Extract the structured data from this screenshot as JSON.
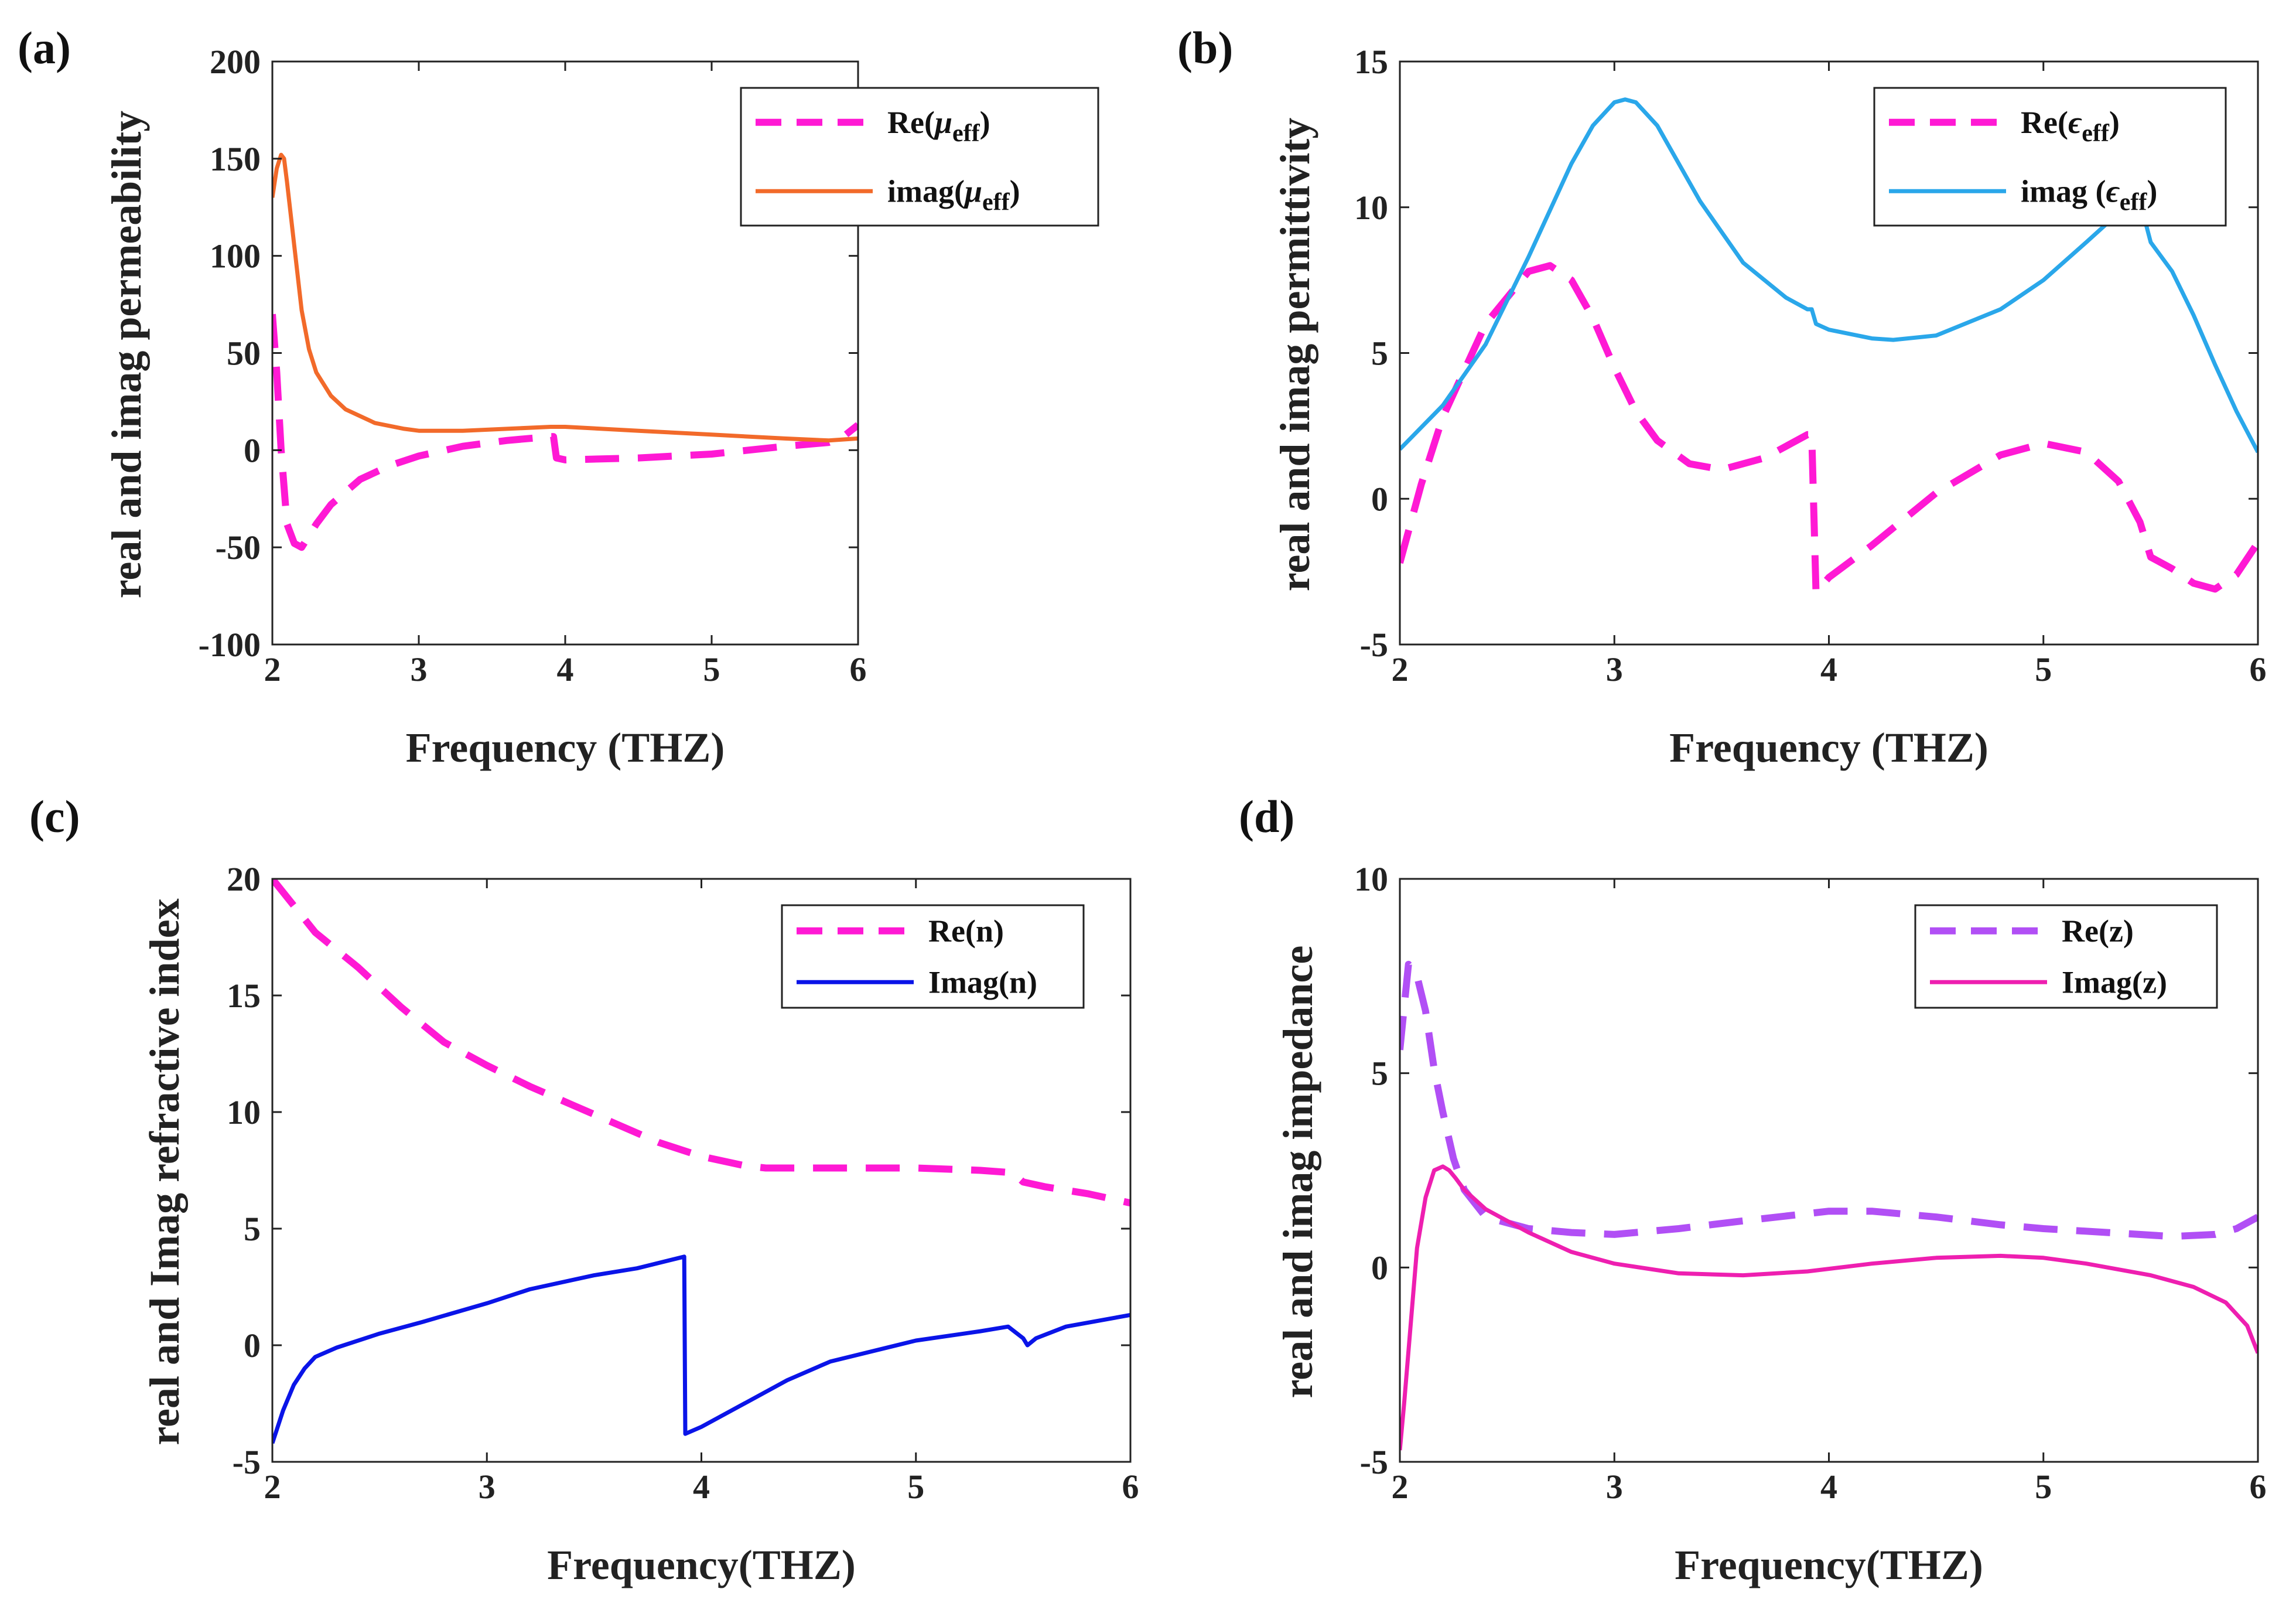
{
  "chart_data": [
    {
      "panel": "(a)",
      "type": "line",
      "xlabel": "Frequency (THZ)",
      "ylabel": "real and imag permeability",
      "xlim": [
        2,
        6
      ],
      "ylim": [
        -100,
        200
      ],
      "xticks": [
        2,
        3,
        4,
        5,
        6
      ],
      "yticks": [
        -100,
        -50,
        0,
        50,
        100,
        150,
        200
      ],
      "legend_position": "top-right",
      "series": [
        {
          "name": "Re(μeff)",
          "label_main": "Re(",
          "label_sym": "μ",
          "label_sub": "eff",
          "label_close": ")",
          "color": "#ff19d4",
          "dash": true,
          "x": [
            2.0,
            2.03,
            2.06,
            2.1,
            2.15,
            2.2,
            2.3,
            2.4,
            2.6,
            2.8,
            3.0,
            3.3,
            3.6,
            3.9,
            3.92,
            3.94,
            4.0,
            4.5,
            5.0,
            5.5,
            5.8,
            5.9,
            6.0
          ],
          "y": [
            70,
            40,
            0,
            -38,
            -48,
            -50,
            -38,
            -28,
            -15,
            -8,
            -3,
            2,
            5,
            7,
            7,
            -4,
            -5,
            -4,
            -2,
            2,
            4,
            7,
            13
          ]
        },
        {
          "name": "imag(μeff)",
          "label_main": "imag(",
          "label_sym": "μ",
          "label_sub": "eff",
          "label_close": ")",
          "color": "#f26a2a",
          "dash": false,
          "x": [
            2.0,
            2.03,
            2.06,
            2.08,
            2.1,
            2.15,
            2.2,
            2.25,
            2.3,
            2.4,
            2.5,
            2.7,
            2.9,
            3.0,
            3.3,
            3.6,
            3.9,
            3.92,
            3.94,
            4.0,
            4.5,
            5.0,
            5.5,
            5.8,
            6.0
          ],
          "y": [
            130,
            145,
            152,
            150,
            138,
            105,
            72,
            52,
            40,
            28,
            21,
            14,
            11,
            10,
            10,
            11,
            12,
            12,
            12,
            12,
            10,
            8,
            6,
            5,
            6
          ]
        }
      ]
    },
    {
      "panel": "(b)",
      "type": "line",
      "xlabel": "Frequency (THZ)",
      "ylabel": "real and imag permittivity",
      "xlim": [
        2,
        6
      ],
      "ylim": [
        -5,
        15
      ],
      "xticks": [
        2,
        3,
        4,
        5,
        6
      ],
      "yticks": [
        -5,
        0,
        5,
        10,
        15
      ],
      "legend_position": "top-right",
      "series": [
        {
          "name": "Re(εeff)",
          "label_main": "Re(",
          "label_sym": "ϵ",
          "label_sub": "eff",
          "label_close": ")",
          "color": "#ff19d4",
          "dash": true,
          "x": [
            2.0,
            2.1,
            2.2,
            2.4,
            2.6,
            2.7,
            2.8,
            2.9,
            3.0,
            3.1,
            3.2,
            3.35,
            3.5,
            3.7,
            3.9,
            3.92,
            3.94,
            4.0,
            4.2,
            4.5,
            4.8,
            5.0,
            5.2,
            5.35,
            5.45,
            5.5,
            5.6,
            5.7,
            5.8,
            5.9,
            6.0
          ],
          "y": [
            -2.2,
            0.5,
            2.8,
            6.0,
            7.8,
            8.0,
            7.5,
            6.2,
            4.5,
            3.0,
            2.0,
            1.2,
            1.0,
            1.4,
            2.2,
            2.2,
            -3.2,
            -2.7,
            -1.6,
            0.2,
            1.5,
            1.9,
            1.6,
            0.6,
            -0.8,
            -2.0,
            -2.4,
            -2.9,
            -3.1,
            -2.6,
            -1.5
          ]
        },
        {
          "name": "imag (εeff)",
          "label_main": "imag (",
          "label_sym": "ϵ",
          "label_sub": "eff",
          "label_close": ")",
          "color": "#2aa7ea",
          "dash": false,
          "x": [
            2.0,
            2.2,
            2.4,
            2.6,
            2.8,
            2.9,
            3.0,
            3.05,
            3.1,
            3.2,
            3.4,
            3.6,
            3.8,
            3.9,
            3.92,
            3.94,
            4.0,
            4.2,
            4.3,
            4.5,
            4.8,
            5.0,
            5.2,
            5.35,
            5.45,
            5.5,
            5.6,
            5.7,
            5.8,
            5.9,
            6.0
          ],
          "y": [
            1.7,
            3.2,
            5.3,
            8.3,
            11.5,
            12.8,
            13.6,
            13.7,
            13.6,
            12.8,
            10.2,
            8.1,
            6.9,
            6.5,
            6.5,
            6.0,
            5.8,
            5.5,
            5.45,
            5.6,
            6.5,
            7.5,
            8.8,
            9.8,
            10.2,
            8.8,
            7.8,
            6.3,
            4.6,
            3.0,
            1.6
          ]
        }
      ]
    },
    {
      "panel": "(c)",
      "type": "line",
      "xlabel": "Frequency(THZ)",
      "ylabel": "real and Imag  refractive index",
      "xlim": [
        2,
        6
      ],
      "ylim": [
        -5,
        20
      ],
      "xticks": [
        2,
        3,
        4,
        5,
        6
      ],
      "yticks": [
        -5,
        0,
        5,
        10,
        15,
        20
      ],
      "legend_position": "top-right",
      "series": [
        {
          "name": "Re(n)",
          "label_main": "Re(n)",
          "label_sym": "",
          "label_sub": "",
          "label_close": "",
          "color": "#ff19d4",
          "dash": true,
          "x": [
            2.0,
            2.2,
            2.4,
            2.6,
            2.8,
            3.0,
            3.2,
            3.4,
            3.6,
            3.8,
            4.0,
            4.2,
            4.3,
            4.5,
            4.8,
            5.0,
            5.3,
            5.45,
            5.5,
            5.6,
            5.8,
            6.0
          ],
          "y": [
            20,
            17.7,
            16.2,
            14.5,
            13.0,
            12.0,
            11.1,
            10.3,
            9.5,
            8.7,
            8.1,
            7.7,
            7.6,
            7.6,
            7.6,
            7.6,
            7.5,
            7.4,
            7.0,
            6.8,
            6.5,
            6.1
          ]
        },
        {
          "name": "Imag(n)",
          "label_main": "Imag(n)",
          "label_sym": "",
          "label_sub": "",
          "label_close": "",
          "color": "#0a14e8",
          "dash": false,
          "x": [
            2.0,
            2.05,
            2.1,
            2.15,
            2.2,
            2.3,
            2.5,
            2.7,
            3.0,
            3.2,
            3.5,
            3.7,
            3.92,
            3.925,
            4.0,
            4.2,
            4.4,
            4.6,
            5.0,
            5.3,
            5.43,
            5.5,
            5.52,
            5.56,
            5.7,
            6.0
          ],
          "y": [
            -4.2,
            -2.8,
            -1.7,
            -1.0,
            -0.5,
            -0.1,
            0.5,
            1.0,
            1.8,
            2.4,
            3.0,
            3.3,
            3.8,
            -3.8,
            -3.5,
            -2.5,
            -1.5,
            -0.7,
            0.2,
            0.6,
            0.8,
            0.3,
            0.0,
            0.3,
            0.8,
            1.3
          ]
        }
      ]
    },
    {
      "panel": "(d)",
      "type": "line",
      "xlabel": "Frequency(THZ)",
      "ylabel": "real and imag impedance",
      "xlim": [
        2,
        6
      ],
      "ylim": [
        -5,
        10
      ],
      "xticks": [
        2,
        3,
        4,
        5,
        6
      ],
      "yticks": [
        -5,
        0,
        5,
        10
      ],
      "legend_position": "top-right",
      "series": [
        {
          "name": "Re(z)",
          "label_main": "Re(z)",
          "label_sym": "",
          "label_sub": "",
          "label_close": "",
          "color": "#b14ff5",
          "dash": true,
          "x": [
            2.0,
            2.04,
            2.08,
            2.12,
            2.16,
            2.2,
            2.25,
            2.3,
            2.4,
            2.6,
            2.8,
            3.0,
            3.3,
            3.6,
            4.0,
            4.2,
            4.5,
            4.8,
            5.0,
            5.3,
            5.6,
            5.8,
            5.9,
            6.0
          ],
          "y": [
            5.6,
            7.8,
            7.5,
            6.6,
            5.1,
            4.0,
            2.8,
            2.0,
            1.3,
            1.0,
            0.9,
            0.85,
            1.0,
            1.2,
            1.45,
            1.45,
            1.3,
            1.1,
            1.0,
            0.9,
            0.8,
            0.85,
            1.0,
            1.3
          ]
        },
        {
          "name": "Imag(z)",
          "label_main": "Imag(z)",
          "label_sym": "",
          "label_sub": "",
          "label_close": "",
          "color": "#ee1fb0",
          "dash": false,
          "x": [
            2.0,
            2.02,
            2.05,
            2.08,
            2.12,
            2.16,
            2.2,
            2.23,
            2.26,
            2.3,
            2.4,
            2.6,
            2.8,
            3.0,
            3.3,
            3.6,
            3.9,
            4.2,
            4.5,
            4.8,
            5.0,
            5.2,
            5.5,
            5.7,
            5.85,
            5.95,
            6.0
          ],
          "y": [
            -4.7,
            -3.5,
            -1.5,
            0.5,
            1.8,
            2.5,
            2.6,
            2.5,
            2.3,
            2.0,
            1.5,
            0.9,
            0.4,
            0.1,
            -0.15,
            -0.2,
            -0.1,
            0.1,
            0.25,
            0.3,
            0.25,
            0.1,
            -0.2,
            -0.5,
            -0.9,
            -1.5,
            -2.2
          ]
        }
      ]
    }
  ]
}
